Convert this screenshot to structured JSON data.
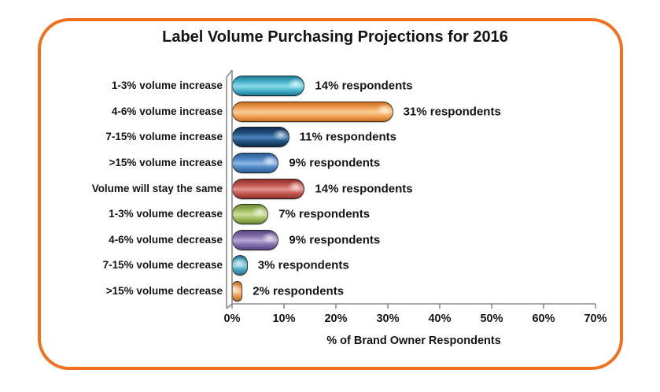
{
  "window": {
    "background": "#FFFFFF",
    "frame_border_color": "#F0701E"
  },
  "title": "Label Volume Purchasing Projections for 2016",
  "chart_data": {
    "type": "bar",
    "orientation": "horizontal",
    "bar_style": "3d-glossy-capsule",
    "title": "Label Volume Purchasing Projections for 2016",
    "xlabel": "% of Brand Owner Respondents",
    "ylabel": "",
    "xlim": [
      0,
      70
    ],
    "x_ticks": [
      "0%",
      "10%",
      "20%",
      "30%",
      "40%",
      "50%",
      "60%",
      "70%"
    ],
    "x_tick_values": [
      0,
      10,
      20,
      30,
      40,
      50,
      60,
      70
    ],
    "grid": false,
    "legend": false,
    "axis_color": "#8C8C8C",
    "text_color": "#141414",
    "categories": [
      "1-3% volume increase",
      "4-6% volume increase",
      "7-15% volume increase",
      ">15% volume increase",
      "Volume will stay the same",
      "1-3% volume decrease",
      "4-6% volume decrease",
      "7-15% volume decrease",
      ">15% volume decrease"
    ],
    "values": [
      14,
      31,
      11,
      9,
      14,
      7,
      9,
      3,
      2
    ],
    "value_labels": [
      "14% respondents",
      "31% respondents",
      "11% respondents",
      "9% respondents",
      "14% respondents",
      "7% respondents",
      "9% respondents",
      "3% respondents",
      "2% respondents"
    ],
    "bar_colors": [
      {
        "name": "turquoise",
        "light": "#8FDCEA",
        "base": "#49B4CE",
        "dark": "#1E7A94"
      },
      {
        "name": "orange",
        "light": "#FBCE96",
        "base": "#F2A35A",
        "dark": "#C96F1E"
      },
      {
        "name": "navy",
        "light": "#4C85BC",
        "base": "#215280",
        "dark": "#0F2C4E"
      },
      {
        "name": "blue",
        "light": "#8FB9E4",
        "base": "#4E86C4",
        "dark": "#2C5C94"
      },
      {
        "name": "red",
        "light": "#E29490",
        "base": "#C4574F",
        "dark": "#8E2F2B"
      },
      {
        "name": "green",
        "light": "#CBDF9A",
        "base": "#9FBC5F",
        "dark": "#6D8A33"
      },
      {
        "name": "purple",
        "light": "#B7A8D6",
        "base": "#8672AE",
        "dark": "#54447E"
      },
      {
        "name": "teal",
        "light": "#86CCDD",
        "base": "#4AA6C0",
        "dark": "#23768F"
      },
      {
        "name": "orange2",
        "light": "#F9C992",
        "base": "#EC9C51",
        "dark": "#BB6D1F"
      }
    ]
  }
}
